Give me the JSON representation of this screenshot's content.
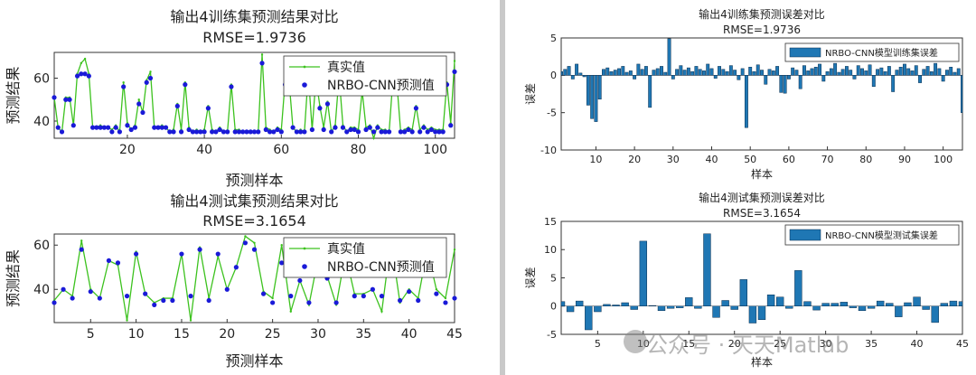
{
  "chart_data": [
    {
      "id": "train-compare",
      "type": "line",
      "title": "输出4训练集预测结果对比",
      "subtitle": "RMSE=1.9736",
      "xlabel": "预测样本",
      "ylabel": "预测结果",
      "xlim": [
        1,
        105
      ],
      "ylim": [
        32,
        72
      ],
      "xticks": [
        20,
        40,
        60,
        80,
        100
      ],
      "yticks": [
        40,
        60
      ],
      "legend": "top-right",
      "series": [
        {
          "name": "真实值",
          "color": "#3cc21e",
          "marker": "dot",
          "values": [
            51,
            37,
            35,
            51,
            51,
            38,
            62,
            67,
            69,
            62,
            37,
            37,
            38,
            37,
            37,
            36,
            38,
            35,
            58,
            39,
            36,
            38,
            50,
            44,
            59,
            63,
            37,
            37,
            38,
            37,
            35,
            36,
            48,
            36,
            58,
            37,
            35,
            36,
            35,
            36,
            47,
            36,
            35,
            37,
            35,
            35,
            57,
            36,
            36,
            35,
            35,
            35,
            35,
            35,
            71,
            37,
            36,
            35,
            37,
            36,
            59,
            59,
            37,
            35,
            36,
            35,
            62,
            36,
            60,
            47,
            37,
            49,
            35,
            38,
            61,
            38,
            35,
            37,
            37,
            36,
            54,
            37,
            38,
            32,
            38,
            36,
            36,
            35,
            60,
            58,
            35,
            36,
            37,
            36,
            47,
            36,
            38,
            36,
            37,
            36,
            36,
            36,
            58,
            39,
            68
          ]
        },
        {
          "name": "NRBO-CNN预测值",
          "color": "#1a1ad8",
          "marker": "filled-circle",
          "values": [
            51,
            37,
            35,
            50,
            50,
            38,
            61,
            62,
            62,
            61,
            37,
            37,
            37,
            37,
            37,
            35,
            37,
            35,
            56,
            38,
            36,
            37,
            48,
            44,
            58,
            60,
            37,
            37,
            37,
            37,
            35,
            35,
            47,
            35,
            57,
            36,
            35,
            35,
            35,
            35,
            46,
            35,
            35,
            36,
            35,
            35,
            56,
            35,
            35,
            35,
            35,
            35,
            35,
            35,
            67,
            36,
            35,
            35,
            36,
            35,
            57,
            58,
            37,
            35,
            35,
            35,
            58,
            36,
            58,
            46,
            36,
            48,
            35,
            37,
            59,
            37,
            35,
            36,
            36,
            35,
            53,
            36,
            37,
            35,
            37,
            35,
            35,
            35,
            58,
            57,
            35,
            35,
            36,
            35,
            46,
            35,
            37,
            35,
            36,
            35,
            35,
            35,
            57,
            38,
            63
          ]
        }
      ]
    },
    {
      "id": "test-compare",
      "type": "line",
      "title": "输出4测试集预测结果对比",
      "subtitle": "RMSE=3.1654",
      "xlabel": "预测样本",
      "ylabel": "预测结果",
      "xlim": [
        1,
        45
      ],
      "ylim": [
        25,
        65
      ],
      "xticks": [
        5,
        10,
        15,
        20,
        25,
        30,
        35,
        40,
        45
      ],
      "yticks": [
        40,
        60
      ],
      "legend": "top-right",
      "series": [
        {
          "name": "真实值",
          "color": "#3cc21e",
          "marker": "dot",
          "values": [
            35,
            40,
            37,
            62,
            40,
            36,
            53,
            51,
            26,
            57,
            38,
            34,
            36,
            36,
            56,
            26,
            59,
            36,
            55,
            40,
            50,
            64,
            61,
            39,
            36,
            60,
            30,
            44,
            33,
            54,
            46,
            33,
            56,
            38,
            38,
            40,
            30,
            62,
            34,
            40,
            36,
            58,
            40,
            36,
            58
          ]
        },
        {
          "name": "NRBO-CNN预测值",
          "color": "#1a1ad8",
          "marker": "filled-circle",
          "values": [
            34,
            40,
            36,
            58,
            39,
            36,
            53,
            52,
            37,
            56,
            38,
            33,
            35,
            35,
            56,
            37,
            58,
            35,
            56,
            40,
            50,
            61,
            58,
            38,
            34,
            52,
            37,
            44,
            34,
            54,
            45,
            34,
            56,
            37,
            37,
            40,
            37,
            57,
            35,
            39,
            35,
            58,
            38,
            34,
            36
          ]
        }
      ]
    },
    {
      "id": "train-error",
      "type": "bar",
      "title": "输出4训练集预测误差对比",
      "subtitle": "RMSE=1.9736",
      "xlabel": "样本",
      "ylabel": "误差",
      "xlim": [
        1,
        105
      ],
      "ylim": [
        -10,
        5
      ],
      "xticks": [
        10,
        20,
        30,
        40,
        50,
        60,
        70,
        80,
        90,
        100
      ],
      "yticks": [
        -10,
        -5,
        0,
        5
      ],
      "legend": "top-right",
      "series": [
        {
          "name": "NRBO-CNN模型训练集误差",
          "color": "#1f77b4",
          "values": [
            0.5,
            0.8,
            1.2,
            -0.5,
            1.5,
            0.3,
            -0.2,
            -4.0,
            -5.8,
            -6.2,
            -3.2,
            0.8,
            1.0,
            0.5,
            0.7,
            0.9,
            1.2,
            0.4,
            0.6,
            -0.5,
            1.5,
            0.8,
            1.2,
            -4.3,
            0.7,
            0.9,
            1.2,
            0.4,
            4.9,
            -0.5,
            0.8,
            1.3,
            0.7,
            1.0,
            0.5,
            1.2,
            0.8,
            0.6,
            1.5,
            0.9,
            -0.4,
            1.2,
            0.8,
            0.5,
            1.3,
            0.7,
            -0.6,
            0.9,
            -7.0,
            1.1,
            0.5,
            1.4,
            0.7,
            -1.2,
            0.8,
            0.6,
            1.2,
            -2.3,
            -2.4,
            -0.5,
            1.0,
            0.7,
            -1.8,
            1.3,
            0.6,
            0.9,
            1.1,
            1.5,
            -0.8,
            0.5,
            0.9,
            1.6,
            0.4,
            0.8,
            1.2,
            0.7,
            -0.5,
            1.3,
            0.9,
            0.6,
            1.4,
            -1.5,
            0.8,
            1.0,
            0.5,
            1.2,
            -2.2,
            0.7,
            1.1,
            1.5,
            0.9,
            0.6,
            1.3,
            -1.0,
            0.8,
            1.2,
            0.5,
            1.6,
            0.9,
            -0.8,
            0.7,
            1.1,
            0.4,
            0.9,
            -5.0
          ]
        }
      ]
    },
    {
      "id": "test-error",
      "type": "bar",
      "title": "输出4测试集预测误差对比",
      "subtitle": "RMSE=3.1654",
      "xlabel": "样本",
      "ylabel": "误差",
      "xlim": [
        1,
        45
      ],
      "ylim": [
        -5,
        15
      ],
      "xticks": [
        5,
        10,
        15,
        20,
        25,
        30,
        35,
        40,
        45
      ],
      "yticks": [
        -5,
        0,
        5,
        10,
        15
      ],
      "legend": "top-right",
      "series": [
        {
          "name": "NRBO-CNN模型测试集误差",
          "color": "#1f77b4",
          "values": [
            0.8,
            -1.0,
            0.9,
            -4.2,
            -1.0,
            0.3,
            0.2,
            0.6,
            -0.6,
            11.5,
            0.1,
            -0.8,
            -0.4,
            -0.3,
            1.5,
            -0.4,
            12.8,
            -2.0,
            1.0,
            -0.6,
            4.7,
            -3.0,
            -2.4,
            2.0,
            1.6,
            -0.4,
            6.3,
            0.8,
            -0.7,
            0.5,
            0.5,
            0.7,
            -0.3,
            -0.8,
            -0.4,
            0.9,
            0.5,
            -1.9,
            0.6,
            1.6,
            -0.6,
            -2.9,
            0.5,
            0.9,
            0.8
          ]
        }
      ]
    }
  ],
  "watermark": "公众号 · 天天Matlab"
}
